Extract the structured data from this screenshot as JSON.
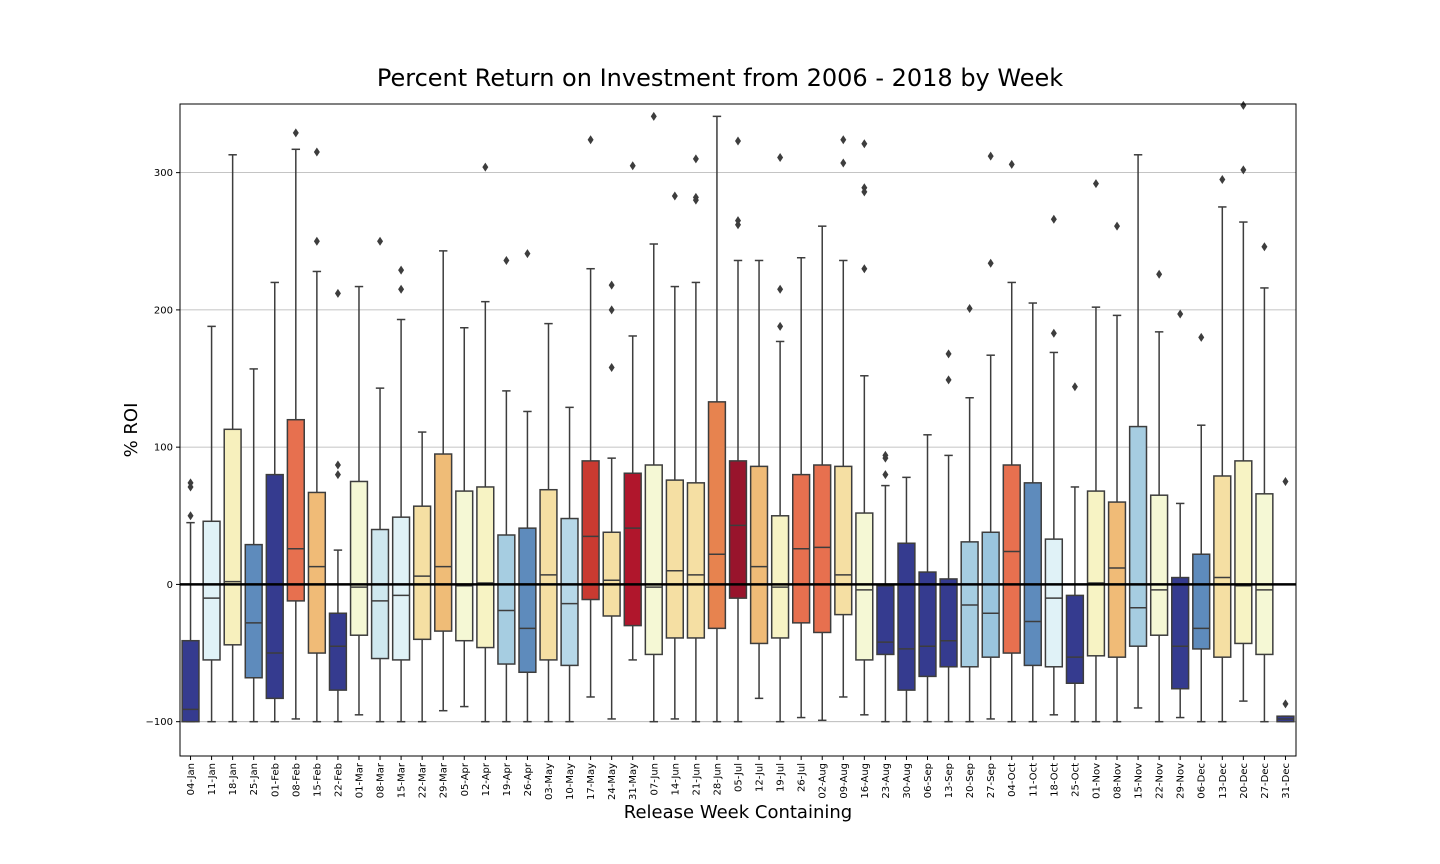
{
  "chart_data": {
    "type": "box",
    "title": "Percent Return on Investment from 2006 - 2018 by Week",
    "xlabel": "Release Week Containing",
    "ylabel": "% ROI",
    "ylim": [
      -125,
      350
    ],
    "yticks": [
      -100,
      0,
      100,
      200,
      300
    ],
    "grid": "horizontal",
    "reference_line_y": 0,
    "categories": [
      "04-Jan",
      "11-Jan",
      "18-Jan",
      "25-Jan",
      "01-Feb",
      "08-Feb",
      "15-Feb",
      "22-Feb",
      "01-Mar",
      "08-Mar",
      "15-Mar",
      "22-Mar",
      "29-Mar",
      "05-Apr",
      "12-Apr",
      "19-Apr",
      "26-Apr",
      "03-May",
      "10-May",
      "17-May",
      "24-May",
      "31-May",
      "07-Jun",
      "14-Jun",
      "21-Jun",
      "28-Jun",
      "05-Jul",
      "12-Jul",
      "19-Jul",
      "26-Jul",
      "02-Aug",
      "09-Aug",
      "16-Aug",
      "23-Aug",
      "30-Aug",
      "06-Sep",
      "13-Sep",
      "20-Sep",
      "27-Sep",
      "04-Oct",
      "11-Oct",
      "18-Oct",
      "25-Oct",
      "01-Nov",
      "08-Nov",
      "15-Nov",
      "22-Nov",
      "29-Nov",
      "06-Dec",
      "13-Dec",
      "20-Dec",
      "27-Dec",
      "31-Dec"
    ],
    "boxes": [
      {
        "lw": -100,
        "q1": -100,
        "med": -91,
        "q3": -41,
        "uw": 45,
        "fliers": [
          50,
          71,
          74
        ],
        "color": "#353b8f"
      },
      {
        "lw": -100,
        "q1": -55,
        "med": -10,
        "q3": 46,
        "uw": 188,
        "fliers": [],
        "color": "#e0f2f7"
      },
      {
        "lw": -100,
        "q1": -44,
        "med": 2,
        "q3": 113,
        "uw": 313,
        "fliers": [],
        "color": "#f7f0bd"
      },
      {
        "lw": -100,
        "q1": -68,
        "med": -28,
        "q3": 29,
        "uw": 157,
        "fliers": [],
        "color": "#5e8bbc"
      },
      {
        "lw": -100,
        "q1": -83,
        "med": -50,
        "q3": 80,
        "uw": 220,
        "fliers": [],
        "color": "#353b8f"
      },
      {
        "lw": -98,
        "q1": -12,
        "med": 26,
        "q3": 120,
        "uw": 317,
        "fliers": [
          329
        ],
        "color": "#e7704f"
      },
      {
        "lw": -100,
        "q1": -50,
        "med": 13,
        "q3": 67,
        "uw": 228,
        "fliers": [
          250,
          315
        ],
        "color": "#f0bb77"
      },
      {
        "lw": -100,
        "q1": -77,
        "med": -45,
        "q3": -21,
        "uw": 25,
        "fliers": [
          80,
          87,
          212
        ],
        "color": "#353b8f"
      },
      {
        "lw": -95,
        "q1": -37,
        "med": -2,
        "q3": 75,
        "uw": 217,
        "fliers": [],
        "color": "#f5f8d5"
      },
      {
        "lw": -100,
        "q1": -54,
        "med": -12,
        "q3": 40,
        "uw": 143,
        "fliers": [
          250
        ],
        "color": "#cfe8ef"
      },
      {
        "lw": -100,
        "q1": -55,
        "med": -8,
        "q3": 49,
        "uw": 193,
        "fliers": [
          215,
          229
        ],
        "color": "#e0f2f7"
      },
      {
        "lw": -100,
        "q1": -40,
        "med": 6,
        "q3": 57,
        "uw": 111,
        "fliers": [],
        "color": "#f5dfa3"
      },
      {
        "lw": -92,
        "q1": -34,
        "med": 13,
        "q3": 95,
        "uw": 243,
        "fliers": [],
        "color": "#efbc77"
      },
      {
        "lw": -89,
        "q1": -41,
        "med": -1,
        "q3": 68,
        "uw": 187,
        "fliers": [],
        "color": "#f5f8d5"
      },
      {
        "lw": -100,
        "q1": -46,
        "med": 1,
        "q3": 71,
        "uw": 206,
        "fliers": [
          304
        ],
        "color": "#f7f3c4"
      },
      {
        "lw": -100,
        "q1": -58,
        "med": -19,
        "q3": 36,
        "uw": 141,
        "fliers": [
          236
        ],
        "color": "#a6cde1"
      },
      {
        "lw": -100,
        "q1": -64,
        "med": -32,
        "q3": 41,
        "uw": 126,
        "fliers": [
          241
        ],
        "color": "#5e8bbc"
      },
      {
        "lw": -100,
        "q1": -55,
        "med": 7,
        "q3": 69,
        "uw": 190,
        "fliers": [],
        "color": "#f5dfa3"
      },
      {
        "lw": -100,
        "q1": -59,
        "med": -14,
        "q3": 48,
        "uw": 129,
        "fliers": [],
        "color": "#b7d8e8"
      },
      {
        "lw": -82,
        "q1": -11,
        "med": 35,
        "q3": 90,
        "uw": 230,
        "fliers": [
          324
        ],
        "color": "#c93a31"
      },
      {
        "lw": -98,
        "q1": -23,
        "med": 3,
        "q3": 38,
        "uw": 92,
        "fliers": [
          158,
          200,
          218
        ],
        "color": "#f5dfa3"
      },
      {
        "lw": -55,
        "q1": -30,
        "med": 41,
        "q3": 81,
        "uw": 181,
        "fliers": [
          305
        ],
        "color": "#b0162c"
      },
      {
        "lw": -100,
        "q1": -51,
        "med": -2,
        "q3": 87,
        "uw": 248,
        "fliers": [
          341
        ],
        "color": "#f5f8d5"
      },
      {
        "lw": -98,
        "q1": -39,
        "med": 10,
        "q3": 76,
        "uw": 217,
        "fliers": [
          283
        ],
        "color": "#f5dfa3"
      },
      {
        "lw": -100,
        "q1": -39,
        "med": 7,
        "q3": 74,
        "uw": 220,
        "fliers": [
          280,
          282,
          310
        ],
        "color": "#f5dfa3"
      },
      {
        "lw": -100,
        "q1": -32,
        "med": 22,
        "q3": 133,
        "uw": 341,
        "fliers": [],
        "color": "#e7834f"
      },
      {
        "lw": -100,
        "q1": -10,
        "med": 43,
        "q3": 90,
        "uw": 236,
        "fliers": [
          262,
          265,
          323
        ],
        "color": "#98142c"
      },
      {
        "lw": -83,
        "q1": -43,
        "med": 13,
        "q3": 86,
        "uw": 236,
        "fliers": [],
        "color": "#f0bb77"
      },
      {
        "lw": -100,
        "q1": -39,
        "med": -2,
        "q3": 50,
        "uw": 177,
        "fliers": [
          188,
          215,
          311
        ],
        "color": "#f7f3c4"
      },
      {
        "lw": -97,
        "q1": -28,
        "med": 26,
        "q3": 80,
        "uw": 238,
        "fliers": [],
        "color": "#e7704f"
      },
      {
        "lw": -99,
        "q1": -35,
        "med": 27,
        "q3": 87,
        "uw": 261,
        "fliers": [],
        "color": "#e7704f"
      },
      {
        "lw": -82,
        "q1": -22,
        "med": 7,
        "q3": 86,
        "uw": 236,
        "fliers": [
          307,
          324
        ],
        "color": "#f5dfa3"
      },
      {
        "lw": -95,
        "q1": -55,
        "med": -4,
        "q3": 52,
        "uw": 152,
        "fliers": [
          230,
          286,
          289,
          321
        ],
        "color": "#f5f8d5"
      },
      {
        "lw": -100,
        "q1": -51,
        "med": -42,
        "q3": -1,
        "uw": 72,
        "fliers": [
          80,
          92,
          94
        ],
        "color": "#353b8f"
      },
      {
        "lw": -100,
        "q1": -77,
        "med": -47,
        "q3": 30,
        "uw": 78,
        "fliers": [],
        "color": "#353b8f"
      },
      {
        "lw": -100,
        "q1": -67,
        "med": -45,
        "q3": 9,
        "uw": 109,
        "fliers": [],
        "color": "#353b8f"
      },
      {
        "lw": -100,
        "q1": -60,
        "med": -41,
        "q3": 4,
        "uw": 94,
        "fliers": [
          149,
          168
        ],
        "color": "#353b8f"
      },
      {
        "lw": -100,
        "q1": -60,
        "med": -15,
        "q3": 31,
        "uw": 136,
        "fliers": [
          201
        ],
        "color": "#a6cde1"
      },
      {
        "lw": -98,
        "q1": -53,
        "med": -21,
        "q3": 38,
        "uw": 167,
        "fliers": [
          234,
          312
        ],
        "color": "#9ac5de"
      },
      {
        "lw": -100,
        "q1": -50,
        "med": 24,
        "q3": 87,
        "uw": 220,
        "fliers": [
          306
        ],
        "color": "#e7704f"
      },
      {
        "lw": -100,
        "q1": -59,
        "med": -27,
        "q3": 74,
        "uw": 205,
        "fliers": [],
        "color": "#5e8bbc"
      },
      {
        "lw": -95,
        "q1": -60,
        "med": -10,
        "q3": 33,
        "uw": 169,
        "fliers": [
          183,
          266
        ],
        "color": "#e0f2f7"
      },
      {
        "lw": -100,
        "q1": -72,
        "med": -53,
        "q3": -8,
        "uw": 71,
        "fliers": [
          144
        ],
        "color": "#353b8f"
      },
      {
        "lw": -100,
        "q1": -52,
        "med": 1,
        "q3": 68,
        "uw": 202,
        "fliers": [
          292
        ],
        "color": "#f7f3c4"
      },
      {
        "lw": -100,
        "q1": -53,
        "med": 12,
        "q3": 60,
        "uw": 196,
        "fliers": [
          261
        ],
        "color": "#f0bb77"
      },
      {
        "lw": -90,
        "q1": -45,
        "med": -17,
        "q3": 115,
        "uw": 313,
        "fliers": [],
        "color": "#a6cde1"
      },
      {
        "lw": -100,
        "q1": -37,
        "med": -4,
        "q3": 65,
        "uw": 184,
        "fliers": [
          226
        ],
        "color": "#f5f8d5"
      },
      {
        "lw": -97,
        "q1": -76,
        "med": -45,
        "q3": 5,
        "uw": 59,
        "fliers": [
          197
        ],
        "color": "#353b8f"
      },
      {
        "lw": -100,
        "q1": -47,
        "med": -32,
        "q3": 22,
        "uw": 116,
        "fliers": [
          180
        ],
        "color": "#5e8bbc"
      },
      {
        "lw": -100,
        "q1": -53,
        "med": 5,
        "q3": 79,
        "uw": 275,
        "fliers": [
          295
        ],
        "color": "#f5dfa3"
      },
      {
        "lw": -85,
        "q1": -43,
        "med": -1,
        "q3": 90,
        "uw": 264,
        "fliers": [
          302,
          349
        ],
        "color": "#f7f3c4"
      },
      {
        "lw": -100,
        "q1": -51,
        "med": -4,
        "q3": 66,
        "uw": 216,
        "fliers": [
          246
        ],
        "color": "#f5f8d5"
      },
      {
        "lw": -100,
        "q1": -100,
        "med": -98,
        "q3": -96,
        "uw": -96,
        "fliers": [
          -87,
          75
        ],
        "color": "#353b8f"
      }
    ]
  }
}
